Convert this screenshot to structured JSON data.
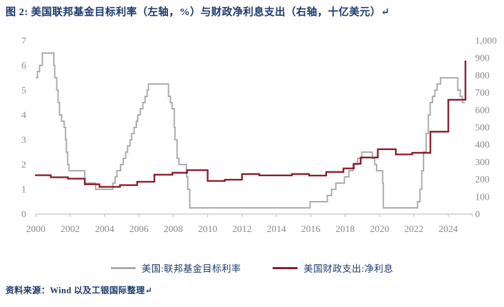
{
  "figure": {
    "title": "图 2: 美国联邦基金目标利率（左轴，%）与财政净利息支出（右轴，十亿美元）↵",
    "source": "资料来源：Wind 以及工银国际整理↵"
  },
  "colors": {
    "title_text": "#1C3A6B",
    "legend_text": "#1C3A6B",
    "source_text": "#1C3A6B",
    "axis_label": "#8F8884",
    "axis_line": "#C4C4C4",
    "series_grey": "#ABABAB",
    "series_red": "#8C1A28"
  },
  "chart_data": {
    "type": "line",
    "title": "美国联邦基金目标利率（左轴，%）与财政净利息支出（右轴，十亿美元）",
    "grid": false,
    "legend_position": "bottom",
    "x_axis": {
      "min": 2000,
      "max": 2025.4,
      "tick_years": [
        2000,
        2002,
        2004,
        2006,
        2008,
        2010,
        2012,
        2014,
        2016,
        2018,
        2020,
        2022,
        2024
      ]
    },
    "left_axis": {
      "label": "美国:联邦基金目标利率",
      "unit": "%",
      "min": 0,
      "max": 7,
      "ticks": [
        0,
        1,
        2,
        3,
        4,
        5,
        6,
        7
      ]
    },
    "right_axis": {
      "label": "美国财政支出:净利息",
      "unit": "十亿美元",
      "min": 0,
      "max": 1000,
      "ticks": [
        0,
        100,
        200,
        300,
        400,
        500,
        600,
        700,
        800,
        900,
        1000
      ]
    },
    "series": [
      {
        "id": "fed-funds-target-rate",
        "name": "美国:联邦基金目标利率",
        "axis": "left",
        "color": "#ABABAB",
        "width": 2,
        "interpolation": "step-after",
        "points": [
          [
            2000.0,
            5.5
          ],
          [
            2000.1,
            5.75
          ],
          [
            2000.22,
            6.0
          ],
          [
            2000.38,
            6.5
          ],
          [
            2001.05,
            6.0
          ],
          [
            2001.1,
            5.5
          ],
          [
            2001.22,
            5.0
          ],
          [
            2001.3,
            4.5
          ],
          [
            2001.38,
            4.0
          ],
          [
            2001.5,
            3.75
          ],
          [
            2001.65,
            3.5
          ],
          [
            2001.73,
            3.0
          ],
          [
            2001.78,
            2.5
          ],
          [
            2001.85,
            2.0
          ],
          [
            2001.93,
            1.75
          ],
          [
            2002.85,
            1.25
          ],
          [
            2003.48,
            1.0
          ],
          [
            2004.48,
            1.25
          ],
          [
            2004.62,
            1.5
          ],
          [
            2004.72,
            1.75
          ],
          [
            2004.93,
            2.0
          ],
          [
            2005.09,
            2.25
          ],
          [
            2005.23,
            2.5
          ],
          [
            2005.34,
            2.75
          ],
          [
            2005.48,
            3.0
          ],
          [
            2005.58,
            3.25
          ],
          [
            2005.72,
            3.5
          ],
          [
            2005.85,
            3.75
          ],
          [
            2005.93,
            4.0
          ],
          [
            2006.08,
            4.25
          ],
          [
            2006.23,
            4.5
          ],
          [
            2006.36,
            4.75
          ],
          [
            2006.48,
            5.0
          ],
          [
            2006.55,
            5.25
          ],
          [
            2007.72,
            4.75
          ],
          [
            2007.83,
            4.5
          ],
          [
            2007.93,
            4.25
          ],
          [
            2008.06,
            3.5
          ],
          [
            2008.1,
            3.0
          ],
          [
            2008.22,
            2.25
          ],
          [
            2008.33,
            2.0
          ],
          [
            2008.77,
            1.5
          ],
          [
            2008.84,
            1.0
          ],
          [
            2008.96,
            0.25
          ],
          [
            2015.96,
            0.5
          ],
          [
            2016.96,
            0.75
          ],
          [
            2017.21,
            1.0
          ],
          [
            2017.46,
            1.25
          ],
          [
            2017.96,
            1.5
          ],
          [
            2018.22,
            1.75
          ],
          [
            2018.46,
            2.0
          ],
          [
            2018.73,
            2.25
          ],
          [
            2018.97,
            2.5
          ],
          [
            2019.58,
            2.25
          ],
          [
            2019.72,
            2.0
          ],
          [
            2019.83,
            1.75
          ],
          [
            2020.18,
            1.25
          ],
          [
            2020.22,
            0.25
          ],
          [
            2022.21,
            0.5
          ],
          [
            2022.35,
            1.0
          ],
          [
            2022.46,
            1.75
          ],
          [
            2022.56,
            2.5
          ],
          [
            2022.71,
            3.25
          ],
          [
            2022.84,
            4.0
          ],
          [
            2022.95,
            4.5
          ],
          [
            2023.08,
            4.75
          ],
          [
            2023.22,
            5.0
          ],
          [
            2023.35,
            5.25
          ],
          [
            2023.55,
            5.5
          ],
          [
            2024.55,
            5.0
          ],
          [
            2024.7,
            4.75
          ],
          [
            2024.82,
            4.5
          ],
          [
            2024.95,
            4.5
          ]
        ]
      },
      {
        "id": "fiscal-net-interest",
        "name": "美国财政支出:净利息",
        "axis": "right",
        "color": "#8C1A28",
        "width": 2.4,
        "interpolation": "step-after",
        "points": [
          [
            1999.95,
            224
          ],
          [
            2000.87,
            212
          ],
          [
            2001.87,
            204
          ],
          [
            2002.85,
            172
          ],
          [
            2003.7,
            157
          ],
          [
            2004.9,
            167
          ],
          [
            2005.9,
            186
          ],
          [
            2006.9,
            227
          ],
          [
            2007.95,
            238
          ],
          [
            2008.8,
            253
          ],
          [
            2010.0,
            191
          ],
          [
            2011.0,
            198
          ],
          [
            2012.0,
            231
          ],
          [
            2013.0,
            223
          ],
          [
            2014.9,
            231
          ],
          [
            2015.9,
            222
          ],
          [
            2016.9,
            243
          ],
          [
            2017.9,
            263
          ],
          [
            2018.5,
            290
          ],
          [
            2018.9,
            326
          ],
          [
            2019.9,
            374
          ],
          [
            2020.95,
            344
          ],
          [
            2021.9,
            353
          ],
          [
            2022.96,
            475
          ],
          [
            2024.0,
            659
          ],
          [
            2025.0,
            885
          ]
        ]
      }
    ]
  }
}
